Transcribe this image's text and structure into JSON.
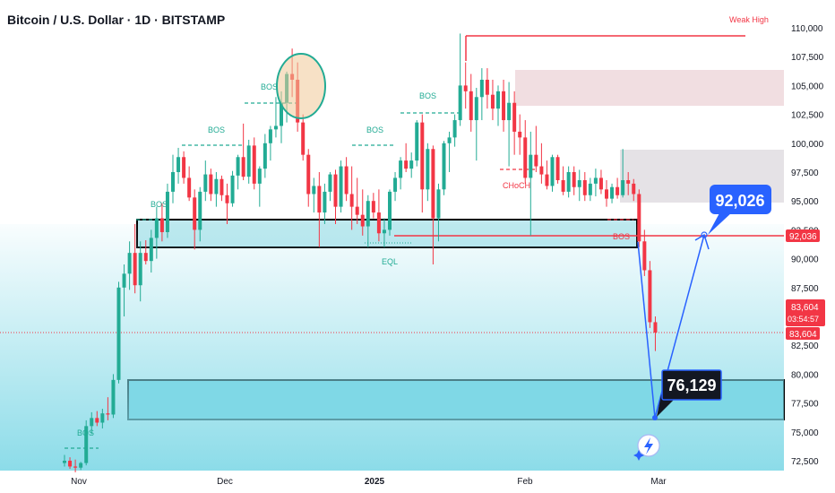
{
  "title": "Bitcoin / U.S. Dollar · 1D · BITSTAMP",
  "colors": {
    "up": "#22ab94",
    "down": "#f23645",
    "zone_fill": "#7fd8e6",
    "supply_fill": "#e8c7cc",
    "arrow": "#2962ff",
    "bos_line": "#22ab94"
  },
  "y_axis": {
    "ticks": [
      "110,000",
      "107,500",
      "105,000",
      "102,500",
      "100,000",
      "97,500",
      "95,000",
      "92,500",
      "90,000",
      "87,500",
      "85,000",
      "82,500",
      "80,000",
      "77,500",
      "75,000",
      "72,500"
    ]
  },
  "x_axis": {
    "labels": [
      {
        "text": "Nov",
        "bold": false
      },
      {
        "text": "Dec",
        "bold": false
      },
      {
        "text": "2025",
        "bold": true
      },
      {
        "text": "Feb",
        "bold": false
      },
      {
        "text": "Mar",
        "bold": false
      }
    ]
  },
  "price_tags": {
    "level_92036": "92,036",
    "current_price": "83,604",
    "countdown": "03:54:57",
    "last_price": "83,604"
  },
  "annotations": {
    "weak_high": "Weak High",
    "choch": "CHoCH",
    "eql": "EQL",
    "bos": "BOS"
  },
  "callouts": {
    "target": "92,026",
    "low": "76,129"
  },
  "chart_data": {
    "type": "candlestick",
    "title": "Bitcoin / U.S. Dollar · 1D · BITSTAMP",
    "ylim": [
      72000,
      111500
    ],
    "y_ticks": [
      110000,
      107500,
      105000,
      102500,
      100000,
      97500,
      95000,
      92500,
      90000,
      87500,
      85000,
      82500,
      80000,
      77500,
      75000,
      72500
    ],
    "x_labels": [
      "Nov",
      "Dec",
      "2025",
      "Feb",
      "Mar"
    ],
    "ohlc": [
      [
        72300,
        73000,
        72000,
        72500
      ],
      [
        72500,
        72800,
        71800,
        72000
      ],
      [
        72000,
        72600,
        71500,
        71900
      ],
      [
        71900,
        72400,
        71700,
        72300
      ],
      [
        72300,
        76000,
        72100,
        75500
      ],
      [
        75500,
        76700,
        74800,
        76200
      ],
      [
        76200,
        76800,
        75500,
        75800
      ],
      [
        75800,
        77000,
        75300,
        76600
      ],
      [
        76600,
        78000,
        76000,
        76500
      ],
      [
        76500,
        80000,
        76200,
        79500
      ],
      [
        79500,
        88000,
        79200,
        87500
      ],
      [
        87500,
        89500,
        85000,
        88700
      ],
      [
        88700,
        91500,
        87300,
        90500
      ],
      [
        90500,
        93000,
        87000,
        87700
      ],
      [
        87700,
        91500,
        86300,
        90500
      ],
      [
        90500,
        91600,
        89500,
        89800
      ],
      [
        89800,
        92500,
        88800,
        91800
      ],
      [
        91800,
        94500,
        90000,
        93500
      ],
      [
        93500,
        94800,
        91500,
        92300
      ],
      [
        92300,
        96500,
        91800,
        95800
      ],
      [
        95800,
        99000,
        94800,
        97500
      ],
      [
        97500,
        99600,
        96500,
        98800
      ],
      [
        98800,
        99300,
        96500,
        97000
      ],
      [
        97000,
        98000,
        95000,
        95300
      ],
      [
        95300,
        96000,
        90800,
        92500
      ],
      [
        92500,
        96200,
        91500,
        95800
      ],
      [
        95800,
        98500,
        95000,
        97300
      ],
      [
        97300,
        97800,
        95000,
        95600
      ],
      [
        95600,
        97500,
        94500,
        96900
      ],
      [
        96900,
        97200,
        95000,
        95500
      ],
      [
        95500,
        96500,
        93000,
        94800
      ],
      [
        94800,
        97600,
        94500,
        97200
      ],
      [
        97200,
        99000,
        96000,
        98800
      ],
      [
        98800,
        101700,
        96800,
        97100
      ],
      [
        97100,
        100300,
        96500,
        99800
      ],
      [
        99800,
        100500,
        96000,
        96500
      ],
      [
        96500,
        98000,
        94500,
        97800
      ],
      [
        97800,
        100800,
        97000,
        100000
      ],
      [
        100000,
        101500,
        98500,
        101200
      ],
      [
        101200,
        104000,
        100500,
        101500
      ],
      [
        101500,
        104500,
        100000,
        103500
      ],
      [
        103500,
        106200,
        101800,
        106000
      ],
      [
        106000,
        108200,
        104000,
        105500
      ],
      [
        105500,
        107000,
        101000,
        101800
      ],
      [
        101800,
        102500,
        98500,
        99000
      ],
      [
        99000,
        99500,
        94500,
        95600
      ],
      [
        95600,
        97000,
        94000,
        96300
      ],
      [
        96300,
        97500,
        91000,
        94000
      ],
      [
        94000,
        96500,
        93000,
        95800
      ],
      [
        95800,
        97500,
        95000,
        97300
      ],
      [
        97300,
        97700,
        93000,
        94500
      ],
      [
        94500,
        98500,
        94000,
        98000
      ],
      [
        98000,
        98800,
        95000,
        95600
      ],
      [
        95600,
        98000,
        92500,
        94500
      ],
      [
        94500,
        97000,
        93000,
        93800
      ],
      [
        93800,
        96000,
        92000,
        92800
      ],
      [
        92800,
        95500,
        91000,
        95000
      ],
      [
        95000,
        95700,
        93500,
        94000
      ],
      [
        94000,
        96000,
        91500,
        92200
      ],
      [
        92200,
        93500,
        91000,
        92500
      ],
      [
        92500,
        96000,
        92000,
        95800
      ],
      [
        95800,
        97500,
        95000,
        97000
      ],
      [
        97000,
        98800,
        96000,
        98500
      ],
      [
        98500,
        100000,
        97500,
        97800
      ],
      [
        97800,
        99200,
        97000,
        98500
      ],
      [
        98500,
        102000,
        98000,
        101800
      ],
      [
        101800,
        102500,
        94000,
        96000
      ],
      [
        96000,
        100000,
        95000,
        99500
      ],
      [
        99500,
        99800,
        89500,
        93500
      ],
      [
        93500,
        96500,
        91500,
        96000
      ],
      [
        96000,
        100200,
        95500,
        100000
      ],
      [
        100000,
        101000,
        97500,
        100500
      ],
      [
        100500,
        102500,
        99700,
        102000
      ],
      [
        102000,
        109500,
        101500,
        105000
      ],
      [
        105000,
        107000,
        103000,
        104500
      ],
      [
        104500,
        106000,
        101000,
        102000
      ],
      [
        102000,
        104800,
        98500,
        104000
      ],
      [
        104000,
        106500,
        102000,
        105500
      ],
      [
        105500,
        106500,
        103000,
        104200
      ],
      [
        104200,
        105500,
        102000,
        103000
      ],
      [
        103000,
        105000,
        101500,
        104500
      ],
      [
        104500,
        105500,
        101000,
        102000
      ],
      [
        102000,
        105300,
        98000,
        103500
      ],
      [
        103500,
        104500,
        99000,
        101000
      ],
      [
        101000,
        102500,
        99000,
        100500
      ],
      [
        100500,
        102000,
        96500,
        97000
      ],
      [
        97000,
        101000,
        92000,
        99000
      ],
      [
        99000,
        101500,
        97500,
        98000
      ],
      [
        98000,
        100000,
        96500,
        97300
      ],
      [
        97300,
        98500,
        96000,
        96300
      ],
      [
        96300,
        99000,
        95800,
        98800
      ],
      [
        98800,
        99000,
        96500,
        96800
      ],
      [
        96800,
        98000,
        95500,
        95800
      ],
      [
        95800,
        98000,
        95300,
        97500
      ],
      [
        97500,
        98000,
        95500,
        96200
      ],
      [
        96200,
        97700,
        95000,
        96800
      ],
      [
        96800,
        97500,
        95000,
        95500
      ],
      [
        95500,
        97000,
        95000,
        96500
      ],
      [
        96500,
        97800,
        95400,
        97000
      ],
      [
        97000,
        97700,
        95600,
        96000
      ],
      [
        96000,
        96800,
        94500,
        95200
      ],
      [
        95200,
        96500,
        94800,
        96200
      ],
      [
        96200,
        97000,
        95200,
        95500
      ],
      [
        95500,
        99500,
        95300,
        96800
      ],
      [
        96800,
        97500,
        95500,
        96500
      ],
      [
        96500,
        96900,
        95000,
        95600
      ],
      [
        95600,
        96000,
        91000,
        91500
      ],
      [
        91500,
        92500,
        88500,
        89000
      ],
      [
        89000,
        89800,
        84000,
        84500
      ],
      [
        84500,
        85000,
        82000,
        83604
      ]
    ]
  }
}
